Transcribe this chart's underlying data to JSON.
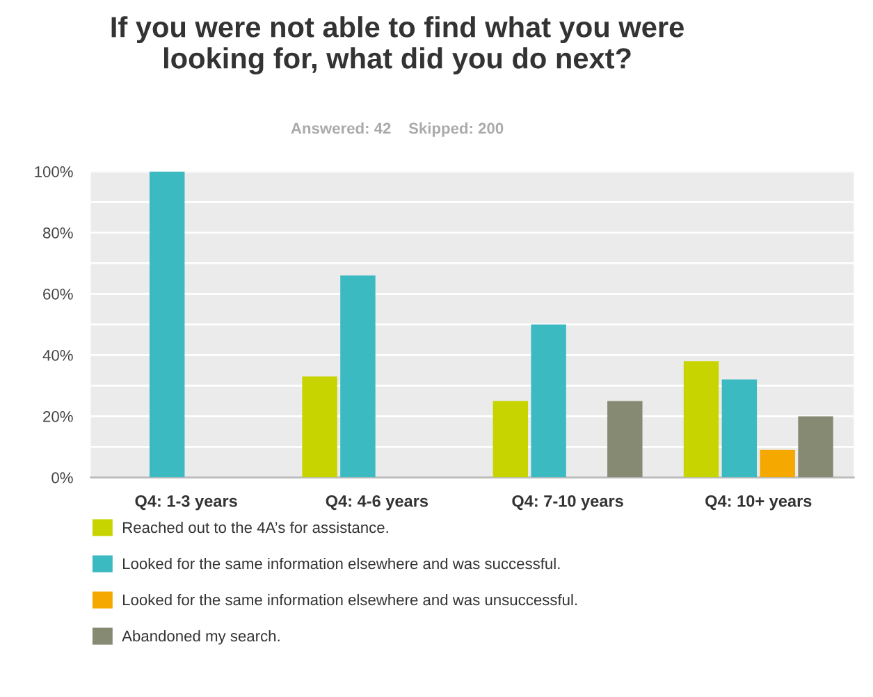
{
  "chart_data": {
    "type": "bar",
    "title": "If you were not able to find what you were\nlooking for, what did you do next?",
    "subtitle": "Answered: 42    Skipped: 200",
    "categories": [
      "Q4: 1-3 years",
      "Q4: 4-6 years",
      "Q4: 7-10 years",
      "Q4: 10+ years"
    ],
    "series": [
      {
        "name": "Reached out to the 4A’s for assistance.",
        "color": "#c8d400",
        "values": [
          null,
          33,
          25,
          38
        ]
      },
      {
        "name": "Looked for the same information elsewhere and was successful.",
        "color": "#3cbac2",
        "values": [
          100,
          66,
          50,
          32
        ]
      },
      {
        "name": "Looked for the same information elsewhere and was unsuccessful.",
        "color": "#f5a800",
        "values": [
          null,
          null,
          null,
          9
        ]
      },
      {
        "name": "Abandoned my search.",
        "color": "#878a72",
        "values": [
          null,
          null,
          25,
          20
        ]
      }
    ],
    "ylim": [
      0,
      100
    ],
    "yticks": [
      {
        "value": 0,
        "label": "0%"
      },
      {
        "value": 10,
        "label": null
      },
      {
        "value": 20,
        "label": "20%"
      },
      {
        "value": 30,
        "label": null
      },
      {
        "value": 40,
        "label": "40%"
      },
      {
        "value": 50,
        "label": null
      },
      {
        "value": 60,
        "label": "60%"
      },
      {
        "value": 70,
        "label": null
      },
      {
        "value": 80,
        "label": "80%"
      },
      {
        "value": 90,
        "label": null
      },
      {
        "value": 100,
        "label": "100%"
      }
    ],
    "grid": "y",
    "legend": "bottom"
  }
}
